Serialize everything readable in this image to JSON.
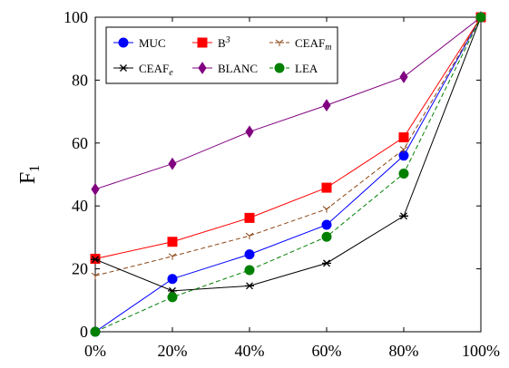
{
  "chart_data": {
    "type": "line",
    "ylabel": "F",
    "ylabel_subscript": "1",
    "xlabel": "",
    "categories": [
      "0%",
      "20%",
      "40%",
      "60%",
      "80%",
      "100%"
    ],
    "x": [
      0,
      20,
      40,
      60,
      80,
      100
    ],
    "ylim": [
      0,
      100
    ],
    "xlim": [
      0,
      100
    ],
    "yticks": [
      0,
      20,
      40,
      60,
      80,
      100
    ],
    "grid": false,
    "legend_position": "top-left",
    "series": [
      {
        "name": "MUC",
        "name_base": "MUC",
        "name_suffix": "",
        "suffix_style": "none",
        "color": "#0000ff",
        "marker": "circle",
        "dash": "solid",
        "values": [
          0,
          16.8,
          24.6,
          34.0,
          56.0,
          100
        ]
      },
      {
        "name": "B3",
        "name_base": "B",
        "name_suffix": "3",
        "suffix_style": "sup",
        "color": "#ff0000",
        "marker": "square",
        "dash": "solid",
        "values": [
          23.2,
          28.6,
          36.2,
          45.8,
          61.8,
          100
        ]
      },
      {
        "name": "CEAFm",
        "name_base": "CEAF",
        "name_suffix": "m",
        "suffix_style": "sub",
        "color": "#8b4513",
        "marker": "tri",
        "dash": "dashed",
        "values": [
          17.8,
          24.0,
          30.5,
          39.0,
          58.0,
          100
        ]
      },
      {
        "name": "CEAFe",
        "name_base": "CEAF",
        "name_suffix": "e",
        "suffix_style": "sub",
        "color": "#000000",
        "marker": "star",
        "dash": "solid",
        "values": [
          23.0,
          13.0,
          14.6,
          21.8,
          36.8,
          100
        ]
      },
      {
        "name": "BLANC",
        "name_base": "BLANC",
        "name_suffix": "",
        "suffix_style": "none",
        "color": "#800080",
        "marker": "diamond",
        "dash": "solid",
        "values": [
          45.3,
          53.4,
          63.6,
          72.0,
          81.0,
          100
        ]
      },
      {
        "name": "LEA",
        "name_base": "LEA",
        "name_suffix": "",
        "suffix_style": "none",
        "color": "#008000",
        "marker": "circle",
        "dash": "dashed",
        "values": [
          0,
          11.0,
          19.6,
          30.2,
          50.3,
          100
        ]
      }
    ]
  }
}
